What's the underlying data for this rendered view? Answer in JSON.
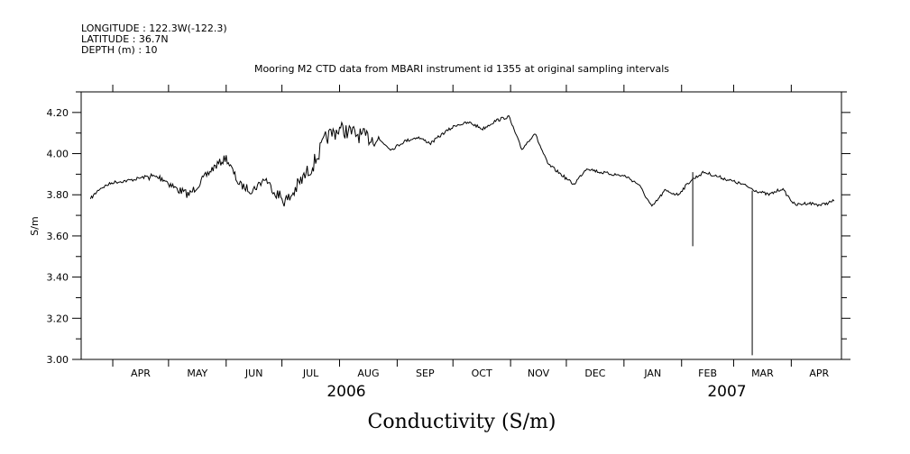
{
  "header": {
    "longitude": "LONGITUDE : 122.3W(-122.3)",
    "latitude": "LATITUDE : 36.7N",
    "depth": "DEPTH (m) : 10"
  },
  "colors": {
    "line": "#000000",
    "axis": "#000000",
    "background": "#ffffff"
  },
  "chart_data": {
    "type": "line",
    "title": "Mooring M2 CTD data from MBARI instrument id 1355 at original sampling intervals",
    "main_title": "Conductivity (S/m)",
    "ylabel": "S/m",
    "xlabel": "",
    "ylim": [
      3.0,
      4.3
    ],
    "xlim": [
      "2006-03-15",
      "2007-04-28"
    ],
    "y_ticks": [
      "3.00",
      "3.20",
      "3.40",
      "3.60",
      "3.80",
      "4.00",
      "4.20"
    ],
    "x_month_labels": [
      "APR",
      "MAY",
      "JUN",
      "JUL",
      "AUG",
      "SEP",
      "OCT",
      "NOV",
      "DEC",
      "JAN",
      "FEB",
      "MAR",
      "APR"
    ],
    "year_labels": [
      "2006",
      "2007"
    ],
    "grid": false,
    "legend": "none",
    "series": [
      {
        "x": [
          "2006-03-20",
          "2006-03-25",
          "2006-04-01",
          "2006-04-10",
          "2006-04-20",
          "2006-04-28",
          "2006-05-05",
          "2006-05-12",
          "2006-05-18",
          "2006-05-25",
          "2006-06-01",
          "2006-06-08",
          "2006-06-15",
          "2006-06-22",
          "2006-06-28",
          "2006-07-04",
          "2006-07-10",
          "2006-07-18",
          "2006-07-25",
          "2006-08-01",
          "2006-08-08",
          "2006-08-15",
          "2006-08-22",
          "2006-08-29",
          "2006-09-05",
          "2006-09-12",
          "2006-09-19",
          "2006-09-26",
          "2006-10-03",
          "2006-10-10",
          "2006-10-17",
          "2006-10-24",
          "2006-10-31",
          "2006-11-07",
          "2006-11-14",
          "2006-11-21",
          "2006-11-28",
          "2006-12-05",
          "2006-12-12",
          "2006-12-19",
          "2006-12-26",
          "2007-01-02",
          "2007-01-09",
          "2007-01-16",
          "2007-01-23",
          "2007-01-30",
          "2007-02-06",
          "2007-02-13",
          "2007-02-20",
          "2007-02-27",
          "2007-03-06",
          "2007-03-13",
          "2007-03-20",
          "2007-03-27",
          "2007-04-03",
          "2007-04-10",
          "2007-04-17",
          "2007-04-24"
        ],
        "y": [
          3.78,
          3.83,
          3.86,
          3.87,
          3.89,
          3.88,
          3.83,
          3.8,
          3.86,
          3.93,
          3.98,
          3.85,
          3.82,
          3.88,
          3.8,
          3.77,
          3.85,
          3.95,
          4.08,
          4.12,
          4.1,
          4.08,
          4.07,
          4.02,
          4.06,
          4.08,
          4.05,
          4.1,
          4.14,
          4.15,
          4.12,
          4.16,
          4.18,
          4.02,
          4.1,
          3.95,
          3.9,
          3.85,
          3.93,
          3.91,
          3.9,
          3.89,
          3.85,
          3.74,
          3.82,
          3.8,
          3.87,
          3.91,
          3.89,
          3.87,
          3.85,
          3.82,
          3.8,
          3.83,
          3.75,
          3.76,
          3.75,
          3.77
        ]
      }
    ],
    "spikes": [
      {
        "x": "2007-02-07",
        "y": 3.55
      },
      {
        "x": "2007-03-11",
        "y": 3.02
      }
    ]
  }
}
